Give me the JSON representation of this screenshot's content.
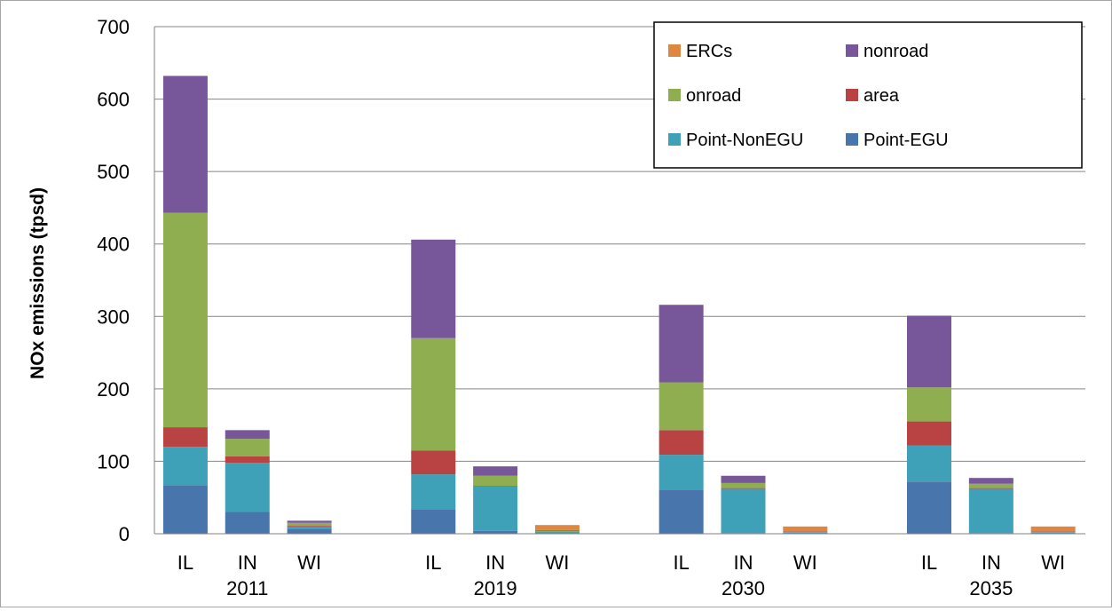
{
  "chart_data": {
    "type": "bar",
    "stacked": true,
    "title": "",
    "xlabel": "",
    "ylabel": "NOx emissions (tpsd)",
    "ylim": [
      0,
      700
    ],
    "yticks": [
      0,
      100,
      200,
      300,
      400,
      500,
      600,
      700
    ],
    "grid": true,
    "legend_position": "top-right",
    "groups": [
      "2011",
      "2019",
      "2030",
      "2035"
    ],
    "categories": [
      "IL",
      "IN",
      "WI"
    ],
    "legend": [
      {
        "name": "ERCs",
        "color": "#E0873F"
      },
      {
        "name": "nonroad",
        "color": "#77579A"
      },
      {
        "name": "onroad",
        "color": "#8FAE4F"
      },
      {
        "name": "area",
        "color": "#B84342"
      },
      {
        "name": "Point-NonEGU",
        "color": "#3FA1B7"
      },
      {
        "name": "Point-EGU",
        "color": "#4775AC"
      }
    ],
    "stack_order": [
      "Point-EGU",
      "Point-NonEGU",
      "area",
      "onroad",
      "nonroad",
      "ERCs"
    ],
    "bars": [
      {
        "group": "2011",
        "category": "IL",
        "values": {
          "Point-EGU": 67,
          "Point-NonEGU": 53,
          "area": 27,
          "onroad": 296,
          "nonroad": 189,
          "ERCs": 0
        }
      },
      {
        "group": "2011",
        "category": "IN",
        "values": {
          "Point-EGU": 30,
          "Point-NonEGU": 68,
          "area": 9,
          "onroad": 24,
          "nonroad": 12,
          "ERCs": 0
        }
      },
      {
        "group": "2011",
        "category": "WI",
        "values": {
          "Point-EGU": 7,
          "Point-NonEGU": 3,
          "area": 1,
          "onroad": 4,
          "nonroad": 3,
          "ERCs": 0
        }
      },
      {
        "group": "2019",
        "category": "IL",
        "values": {
          "Point-EGU": 34,
          "Point-NonEGU": 48,
          "area": 33,
          "onroad": 155,
          "nonroad": 136,
          "ERCs": 0
        }
      },
      {
        "group": "2019",
        "category": "IN",
        "values": {
          "Point-EGU": 4,
          "Point-NonEGU": 61,
          "area": 1,
          "onroad": 14,
          "nonroad": 13,
          "ERCs": 0
        }
      },
      {
        "group": "2019",
        "category": "WI",
        "values": {
          "Point-EGU": 0,
          "Point-NonEGU": 3,
          "area": 0,
          "onroad": 1,
          "nonroad": 1,
          "ERCs": 7
        }
      },
      {
        "group": "2030",
        "category": "IL",
        "values": {
          "Point-EGU": 61,
          "Point-NonEGU": 48,
          "area": 34,
          "onroad": 66,
          "nonroad": 107,
          "ERCs": 0
        }
      },
      {
        "group": "2030",
        "category": "IN",
        "values": {
          "Point-EGU": 1,
          "Point-NonEGU": 61,
          "area": 1,
          "onroad": 7,
          "nonroad": 10,
          "ERCs": 0
        }
      },
      {
        "group": "2030",
        "category": "WI",
        "values": {
          "Point-EGU": 0,
          "Point-NonEGU": 2,
          "area": 0,
          "onroad": 0.5,
          "nonroad": 0.5,
          "ERCs": 7
        }
      },
      {
        "group": "2035",
        "category": "IL",
        "values": {
          "Point-EGU": 72,
          "Point-NonEGU": 50,
          "area": 33,
          "onroad": 47,
          "nonroad": 99,
          "ERCs": 0
        }
      },
      {
        "group": "2035",
        "category": "IN",
        "values": {
          "Point-EGU": 1,
          "Point-NonEGU": 61,
          "area": 1,
          "onroad": 6,
          "nonroad": 8,
          "ERCs": 0
        }
      },
      {
        "group": "2035",
        "category": "WI",
        "values": {
          "Point-EGU": 0,
          "Point-NonEGU": 2,
          "area": 0,
          "onroad": 0.5,
          "nonroad": 0.5,
          "ERCs": 7
        }
      }
    ]
  }
}
